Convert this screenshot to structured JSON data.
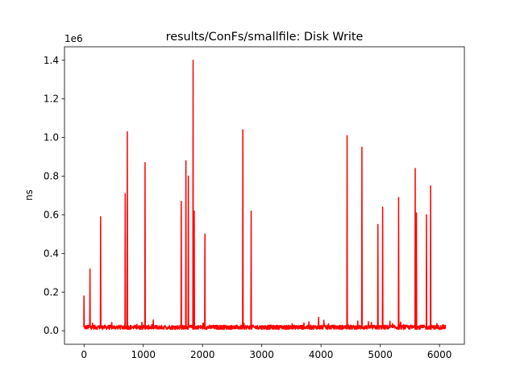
{
  "chart_data": {
    "type": "line",
    "title": "results/ConFs/smallfile: Disk Write",
    "xlabel": "",
    "ylabel": "ns",
    "y_offset_text": "1e6",
    "y_scale_factor": 1000000,
    "xlim": [
      -330,
      6420
    ],
    "ylim": [
      -0.07,
      1.47
    ],
    "xticks": [
      0,
      1000,
      2000,
      3000,
      4000,
      5000,
      6000
    ],
    "xtick_labels": [
      "0",
      "1000",
      "2000",
      "3000",
      "4000",
      "5000",
      "6000"
    ],
    "yticks": [
      0.0,
      0.2,
      0.4,
      0.6,
      0.8,
      1.0,
      1.2,
      1.4
    ],
    "ytick_labels": [
      "0.0",
      "0.2",
      "0.4",
      "0.6",
      "0.8",
      "1.0",
      "1.2",
      "1.4"
    ],
    "grid": false,
    "legend": "none",
    "series": [
      {
        "color": "#ff0000",
        "baseline_mean": 0.018,
        "x_count": 6100,
        "spikes": [
          {
            "x": 0,
            "y": 0.18
          },
          {
            "x": 100,
            "y": 0.32
          },
          {
            "x": 280,
            "y": 0.59
          },
          {
            "x": 695,
            "y": 0.71
          },
          {
            "x": 730,
            "y": 1.03
          },
          {
            "x": 1030,
            "y": 0.87
          },
          {
            "x": 1640,
            "y": 0.67
          },
          {
            "x": 1720,
            "y": 0.88
          },
          {
            "x": 1760,
            "y": 0.8
          },
          {
            "x": 1840,
            "y": 1.4
          },
          {
            "x": 1860,
            "y": 0.62
          },
          {
            "x": 2040,
            "y": 0.5
          },
          {
            "x": 2680,
            "y": 1.04
          },
          {
            "x": 2820,
            "y": 0.62
          },
          {
            "x": 3960,
            "y": 0.07
          },
          {
            "x": 4440,
            "y": 1.01
          },
          {
            "x": 4690,
            "y": 0.95
          },
          {
            "x": 4960,
            "y": 0.55
          },
          {
            "x": 5040,
            "y": 0.64
          },
          {
            "x": 5310,
            "y": 0.69
          },
          {
            "x": 5590,
            "y": 0.84
          },
          {
            "x": 5610,
            "y": 0.61
          },
          {
            "x": 5780,
            "y": 0.6
          },
          {
            "x": 5850,
            "y": 0.75
          }
        ]
      }
    ]
  }
}
